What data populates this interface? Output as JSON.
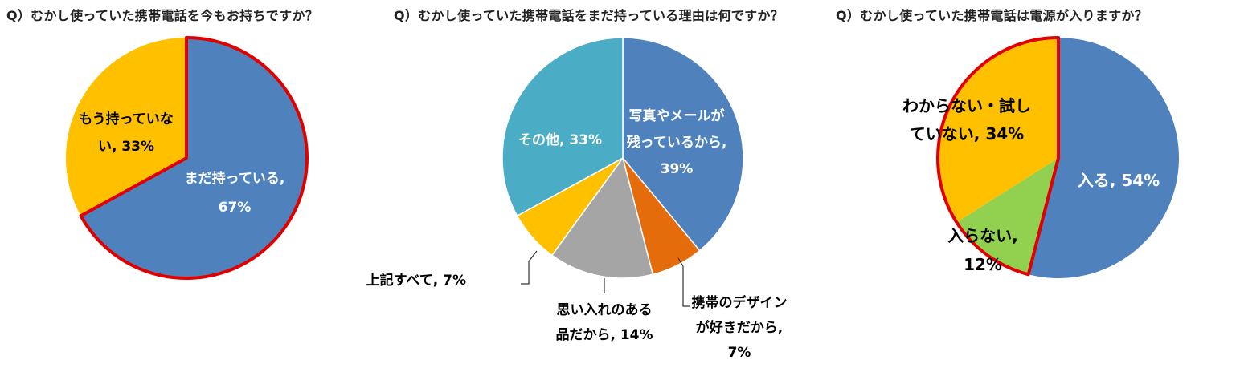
{
  "chart_data": [
    {
      "type": "pie",
      "title": "Q）むかし使っていた携帯電話を今もお持ちですか？",
      "slices": [
        {
          "label_lines": [
            "まだ持っている,",
            "67%"
          ],
          "category": "まだ持っている",
          "value": 67,
          "color": "#4F81BD",
          "highlighted": true
        },
        {
          "label_lines": [
            "もう持っていな",
            "い, 33%"
          ],
          "category": "もう持っていない",
          "value": 33,
          "color": "#FFC000",
          "highlighted": false
        }
      ]
    },
    {
      "type": "pie",
      "title": "Q）むかし使っていた携帯電話をまだ持っている理由は何ですか？",
      "slices": [
        {
          "label_lines": [
            "写真やメールが",
            "残っているから,",
            "39%"
          ],
          "category": "写真やメールが残っているから",
          "value": 39,
          "color": "#4F81BD"
        },
        {
          "label_lines": [
            "携帯のデザイン",
            "が好きだから,",
            "7%"
          ],
          "category": "携帯のデザインが好きだから",
          "value": 7,
          "color": "#E46C0A"
        },
        {
          "label_lines": [
            "思い入れのある",
            "品だから, 14%"
          ],
          "category": "思い入れのある品だから",
          "value": 14,
          "color": "#A5A5A5"
        },
        {
          "label_lines": [
            "上記すべて, 7%"
          ],
          "category": "上記すべて",
          "value": 7,
          "color": "#FFC000"
        },
        {
          "label_lines": [
            "その他, 33%"
          ],
          "category": "その他",
          "value": 33,
          "color": "#4BACC6"
        }
      ]
    },
    {
      "type": "pie",
      "title": "Q）むかし使っていた携帯電話は電源が入りますか？",
      "slices": [
        {
          "label_lines": [
            "入る, 54%"
          ],
          "category": "入る",
          "value": 54,
          "color": "#4F81BD",
          "highlighted": false
        },
        {
          "label_lines": [
            "入らない,",
            "12%"
          ],
          "category": "入らない",
          "value": 12,
          "color": "#92D050",
          "highlighted": true
        },
        {
          "label_lines": [
            "わからない・試し",
            "ていない, 34%"
          ],
          "category": "わからない・試していない",
          "value": 34,
          "color": "#FFC000",
          "highlighted": true
        }
      ]
    }
  ]
}
